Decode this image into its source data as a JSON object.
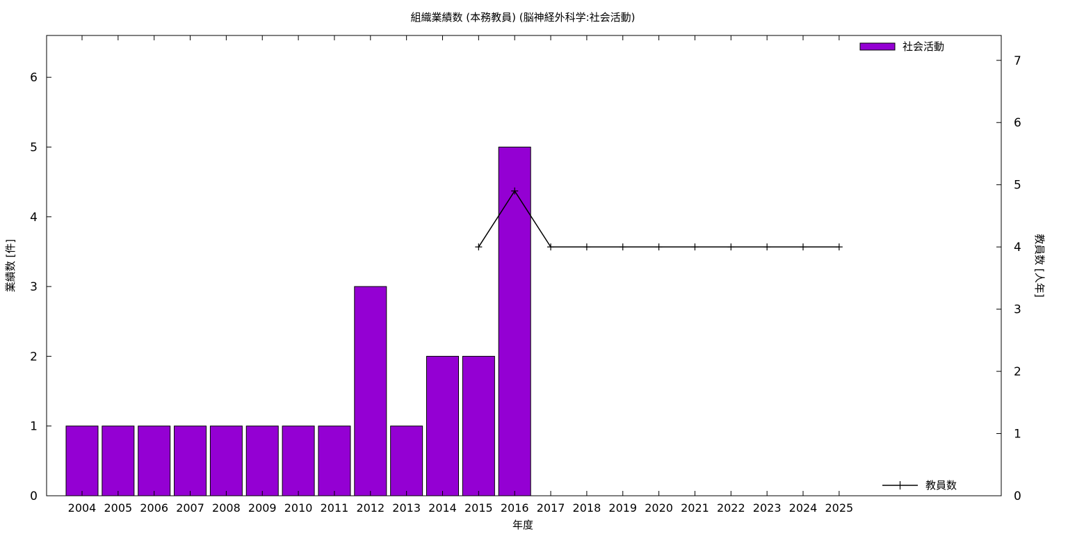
{
  "chart_data": {
    "type": "bar",
    "title": "組織業績数 (本務教員) (脳神経外科学:社会活動)",
    "xlabel": "年度",
    "ylabel": "業績数 [件]",
    "y2label": "教員数 [人年]",
    "categories": [
      "2004",
      "2005",
      "2006",
      "2007",
      "2008",
      "2009",
      "2010",
      "2011",
      "2012",
      "2013",
      "2014",
      "2015",
      "2016",
      "2017",
      "2018",
      "2019",
      "2020",
      "2021",
      "2022",
      "2023",
      "2024",
      "2025"
    ],
    "ylim": [
      0,
      6.6
    ],
    "y2lim": [
      0,
      7.4
    ],
    "yticks": [
      0,
      1,
      2,
      3,
      4,
      5,
      6
    ],
    "y2ticks": [
      0,
      1,
      2,
      3,
      4,
      5,
      6,
      7
    ],
    "grid": false,
    "legend_position": "top-right",
    "series": [
      {
        "name": "社会活動",
        "type": "bar",
        "axis": "left",
        "color": "#9400d3",
        "values": [
          1,
          1,
          1,
          1,
          1,
          1,
          1,
          1,
          3,
          1,
          2,
          2,
          5,
          null,
          null,
          null,
          null,
          null,
          null,
          null,
          null,
          null
        ]
      },
      {
        "name": "教員数",
        "type": "line",
        "axis": "right",
        "color": "#000000",
        "marker": "plus",
        "values": [
          null,
          null,
          null,
          null,
          null,
          null,
          null,
          null,
          null,
          null,
          null,
          4,
          4.9,
          4,
          4,
          4,
          4,
          4,
          4,
          4,
          4,
          4
        ]
      }
    ]
  }
}
